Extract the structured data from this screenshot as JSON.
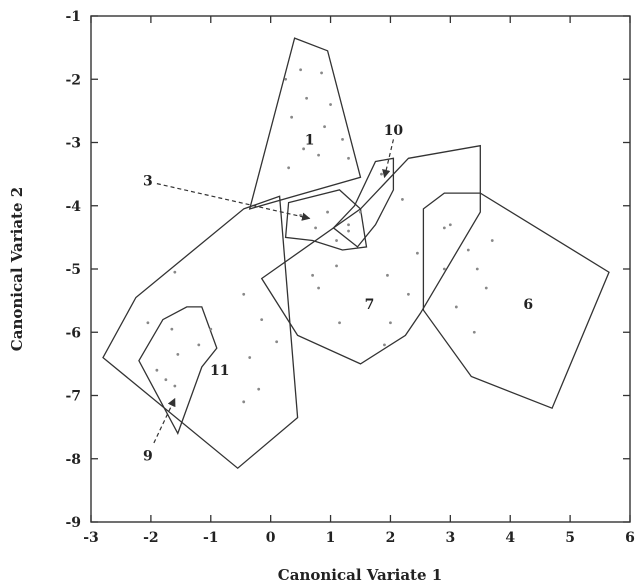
{
  "chart_data": {
    "type": "scatter",
    "title": "",
    "xlabel": "Canonical Variate 1",
    "ylabel": "Canonical Variate 2",
    "xlim": [
      -3,
      6
    ],
    "ylim": [
      -9,
      -1
    ],
    "xticks": [
      -3,
      -2,
      -1,
      0,
      1,
      2,
      3,
      4,
      5,
      6
    ],
    "yticks": [
      -1,
      -2,
      -3,
      -4,
      -5,
      -6,
      -7,
      -8,
      -9
    ],
    "grid": false,
    "legend": "none",
    "hulls": [
      {
        "name": "1",
        "label_pos": [
          0.65,
          -2.95
        ],
        "polygon": [
          [
            0.4,
            -1.35
          ],
          [
            0.95,
            -1.55
          ],
          [
            1.5,
            -3.55
          ],
          [
            -0.35,
            -4.05
          ]
        ],
        "points": [
          [
            0.25,
            -2.0
          ],
          [
            0.5,
            -1.85
          ],
          [
            0.85,
            -1.9
          ],
          [
            0.6,
            -2.3
          ],
          [
            1.0,
            -2.4
          ],
          [
            0.35,
            -2.6
          ],
          [
            0.9,
            -2.75
          ],
          [
            1.2,
            -2.95
          ],
          [
            0.55,
            -3.1
          ],
          [
            0.8,
            -3.2
          ],
          [
            1.3,
            -3.25
          ],
          [
            0.3,
            -3.4
          ]
        ]
      },
      {
        "name": "3",
        "label_pos": [
          -2.05,
          -3.6
        ],
        "polygon": [
          [
            0.3,
            -3.95
          ],
          [
            1.15,
            -3.75
          ],
          [
            1.5,
            -4.05
          ],
          [
            1.6,
            -4.65
          ],
          [
            1.2,
            -4.7
          ],
          [
            0.7,
            -4.55
          ],
          [
            0.25,
            -4.5
          ]
        ],
        "points": [
          [
            0.5,
            -4.15
          ],
          [
            0.95,
            -4.1
          ],
          [
            1.3,
            -4.3
          ],
          [
            0.75,
            -4.35
          ],
          [
            1.1,
            -4.55
          ]
        ],
        "arrow": [
          [
            -1.9,
            -3.65
          ],
          [
            0.65,
            -4.2
          ]
        ]
      },
      {
        "name": "10",
        "label_pos": [
          2.05,
          -2.8
        ],
        "polygon": [
          [
            1.75,
            -3.3
          ],
          [
            2.05,
            -3.25
          ],
          [
            2.05,
            -3.75
          ],
          [
            1.75,
            -4.3
          ],
          [
            1.45,
            -4.65
          ],
          [
            1.05,
            -4.35
          ],
          [
            1.4,
            -4.0
          ]
        ],
        "points": [
          [
            1.85,
            -3.5
          ],
          [
            1.5,
            -4.1
          ],
          [
            1.3,
            -4.4
          ]
        ],
        "arrow": [
          [
            2.05,
            -2.95
          ],
          [
            1.9,
            -3.55
          ]
        ]
      },
      {
        "name": "7",
        "label_pos": [
          1.65,
          -5.55
        ],
        "polygon": [
          [
            2.3,
            -3.25
          ],
          [
            3.5,
            -3.05
          ],
          [
            3.5,
            -4.1
          ],
          [
            2.5,
            -5.7
          ],
          [
            2.25,
            -6.05
          ],
          [
            1.5,
            -6.5
          ],
          [
            0.45,
            -6.05
          ],
          [
            -0.15,
            -5.15
          ],
          [
            1.5,
            -4.05
          ]
        ],
        "points": [
          [
            0.7,
            -5.1
          ],
          [
            0.8,
            -5.3
          ],
          [
            1.1,
            -4.95
          ],
          [
            1.95,
            -5.1
          ],
          [
            2.45,
            -4.75
          ],
          [
            2.9,
            -4.35
          ],
          [
            2.2,
            -3.9
          ],
          [
            2.0,
            -5.85
          ],
          [
            1.9,
            -6.2
          ],
          [
            1.15,
            -5.85
          ],
          [
            2.3,
            -5.4
          ]
        ]
      },
      {
        "name": "6",
        "label_pos": [
          4.3,
          -5.55
        ],
        "polygon": [
          [
            2.55,
            -4.05
          ],
          [
            2.9,
            -3.8
          ],
          [
            3.5,
            -3.8
          ],
          [
            5.65,
            -5.05
          ],
          [
            4.7,
            -7.2
          ],
          [
            3.35,
            -6.7
          ],
          [
            2.55,
            -5.65
          ]
        ],
        "points": [
          [
            3.0,
            -4.3
          ],
          [
            3.3,
            -4.7
          ],
          [
            3.45,
            -5.0
          ],
          [
            3.6,
            -5.3
          ],
          [
            3.1,
            -5.6
          ],
          [
            3.4,
            -6.0
          ],
          [
            2.9,
            -5.0
          ],
          [
            3.7,
            -4.55
          ]
        ]
      },
      {
        "name": "11",
        "label_pos": [
          -0.85,
          -6.6
        ],
        "polygon": [
          [
            -0.45,
            -4.05
          ],
          [
            0.15,
            -3.85
          ],
          [
            0.45,
            -7.35
          ],
          [
            -0.55,
            -8.15
          ],
          [
            -2.8,
            -6.4
          ],
          [
            -2.25,
            -5.45
          ]
        ],
        "points": [
          [
            -0.45,
            -5.4
          ],
          [
            -0.15,
            -5.8
          ],
          [
            -0.35,
            -6.4
          ],
          [
            0.1,
            -6.15
          ],
          [
            -1.55,
            -6.35
          ],
          [
            -1.75,
            -6.75
          ],
          [
            -0.45,
            -7.1
          ],
          [
            -0.2,
            -6.9
          ],
          [
            -1.0,
            -5.95
          ],
          [
            -1.6,
            -5.05
          ]
        ]
      },
      {
        "name": "9",
        "label_pos": [
          -2.05,
          -7.95
        ],
        "polygon": [
          [
            -2.2,
            -6.45
          ],
          [
            -1.8,
            -5.8
          ],
          [
            -1.4,
            -5.6
          ],
          [
            -1.15,
            -5.6
          ],
          [
            -0.9,
            -6.25
          ],
          [
            -1.15,
            -6.55
          ],
          [
            -1.55,
            -7.6
          ]
        ],
        "points": [
          [
            -2.05,
            -5.85
          ],
          [
            -1.65,
            -5.95
          ],
          [
            -1.9,
            -6.6
          ],
          [
            -1.6,
            -6.85
          ],
          [
            -1.2,
            -6.2
          ]
        ],
        "arrow": [
          [
            -1.95,
            -7.75
          ],
          [
            -1.6,
            -7.05
          ]
        ]
      }
    ]
  }
}
